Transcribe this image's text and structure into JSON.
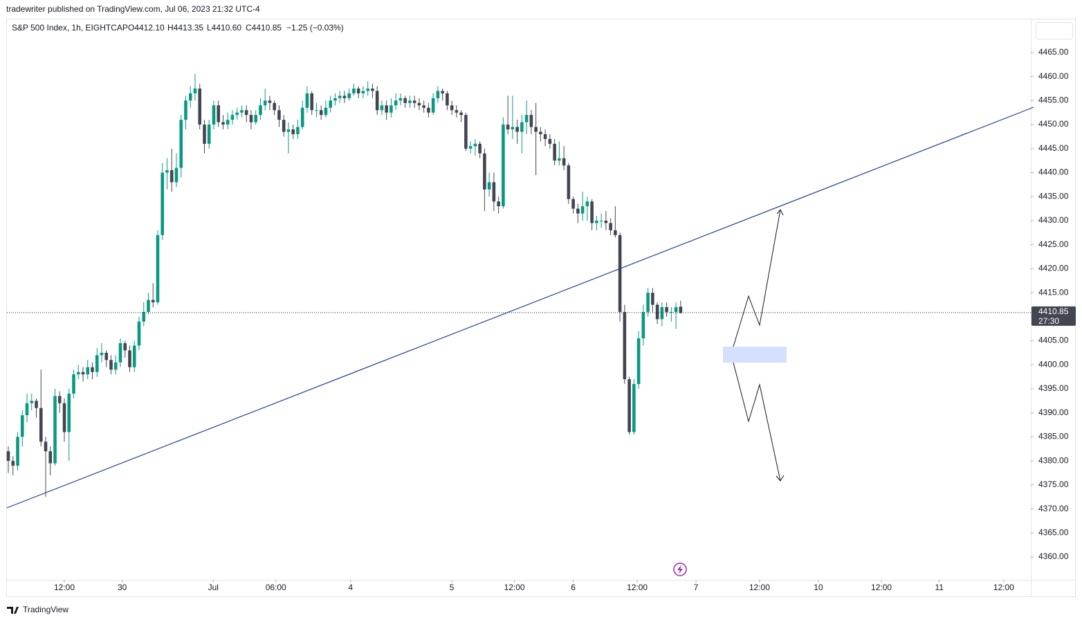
{
  "header": {
    "published": "tradewriter published on TradingView.com, Jul 06, 2023 21:32 UTC-4",
    "brand": "TradingView"
  },
  "chart_data": {
    "type": "candlestick",
    "legend": {
      "symbol": "S&P 500 Index, 1h, EIGHTCAP",
      "open": "O4412.10",
      "high": "H4413.35",
      "low": "L4410.60",
      "close": "C4410.85",
      "change": "−1.25 (−0.03%)"
    },
    "last_price_label": "4410.85",
    "countdown": "27:30",
    "up_color": "#089981",
    "down_color": "#434651",
    "open": [
      4382,
      4380,
      4379,
      4385,
      4389.5,
      4392,
      4392.5,
      4391,
      4384,
      4382,
      4379.5,
      4393.5,
      4392,
      4386,
      4394,
      4398,
      4398.5,
      4398,
      4399.5,
      4398.5,
      4402,
      4402.5,
      4401,
      4399,
      4400.5,
      4404.5,
      4403,
      4399.5,
      4404,
      4409,
      4411,
      4413.5,
      4413,
      4427,
      4440,
      4440.5,
      4438,
      4441,
      4451,
      4455,
      4456.5,
      4457.5,
      4450,
      4446,
      4450,
      4454,
      4450.5,
      4450,
      4451,
      4452,
      4452.5,
      4453,
      4452,
      4450.5,
      4452,
      4454,
      4455,
      4454.5,
      4453,
      4451,
      4448.5,
      4449,
      4448,
      4449.5,
      4453.5,
      4456.5,
      4453,
      4453,
      4452,
      4453.5,
      4455,
      4455.5,
      4456,
      4455.5,
      4456.5,
      4457.5,
      4456.5,
      4457,
      4457.5,
      4457,
      4453,
      4454,
      4452.5,
      4454,
      4455,
      4455.5,
      4454.5,
      4455,
      4454.5,
      4454,
      4453.5,
      4452.5,
      4455.5,
      4457,
      4456.5,
      4454,
      4453,
      4452.5,
      4452,
      4445,
      4445.5,
      4446,
      4444,
      4436.5,
      4438,
      4434,
      4433,
      4450,
      4449,
      4449.5,
      4448.5,
      4450.5,
      4452,
      4449.5,
      4448.5,
      4448,
      4447,
      4446,
      4442.5,
      4443,
      4441.5,
      4434.5,
      4432.5,
      4431.5,
      4433,
      4434,
      4429.5,
      4430,
      4430,
      4429.5,
      4428,
      4427,
      4411,
      4397,
      4386,
      4396,
      4405.5,
      4411,
      4415,
      4412.5,
      4409.5,
      4412,
      4411,
      4411,
      4412.1
    ],
    "high": [
      4383,
      4381,
      4386,
      4390.5,
      4394,
      4394,
      4393,
      4399,
      4385,
      4383,
      4395,
      4394.5,
      4393,
      4395,
      4399,
      4400,
      4399.5,
      4401,
      4400.5,
      4403.5,
      4404.5,
      4403,
      4402,
      4402,
      4405.5,
      4405,
      4404,
      4405,
      4410,
      4413,
      4415,
      4417,
      4428,
      4442,
      4443,
      4445,
      4444,
      4452,
      4456,
      4458,
      4460.5,
      4458.5,
      4451,
      4451,
      4455,
      4455,
      4452,
      4452.5,
      4453,
      4453.5,
      4454,
      4454,
      4453,
      4453,
      4455.5,
      4457.5,
      4456,
      4455,
      4454,
      4452,
      4450.5,
      4450,
      4451,
      4455,
      4458,
      4457,
      4454.5,
      4454,
      4455,
      4456,
      4456.5,
      4457,
      4457,
      4457.5,
      4458.5,
      4458,
      4458,
      4459,
      4458.5,
      4458,
      4455,
      4455,
      4455.5,
      4456.5,
      4456.5,
      4456,
      4456,
      4456,
      4455.5,
      4455,
      4454.5,
      4456.5,
      4458,
      4457.5,
      4457,
      4455,
      4454,
      4453,
      4452.5,
      4446.5,
      4447,
      4446.5,
      4445,
      4440,
      4440,
      4435,
      4451.5,
      4456,
      4456,
      4451,
      4452,
      4455,
      4453,
      4454.5,
      4449.5,
      4449,
      4448,
      4447,
      4446.5,
      4445.5,
      4442,
      4435,
      4433.5,
      4436,
      4435,
      4434.5,
      4431,
      4431.5,
      4432,
      4430.5,
      4433,
      4427.5,
      4412.5,
      4397.5,
      4397,
      4407,
      4412.5,
      4416,
      4416,
      4413,
      4413,
      4413,
      4412,
      4413,
      4413.35
    ],
    "low": [
      4377.5,
      4377,
      4378,
      4383,
      4388,
      4390.5,
      4389,
      4383,
      4372.5,
      4377,
      4379,
      4390,
      4384,
      4380,
      4393,
      4397,
      4396.5,
      4397,
      4397,
      4397.5,
      4400.5,
      4399.5,
      4398,
      4398,
      4399.5,
      4401.5,
      4398.5,
      4398.5,
      4403,
      4408,
      4410.5,
      4412,
      4412.5,
      4426,
      4436.5,
      4436,
      4437,
      4439,
      4449,
      4453.5,
      4455,
      4449,
      4444,
      4445,
      4449,
      4449.5,
      4449,
      4449,
      4450,
      4451,
      4451.5,
      4450.5,
      4449,
      4450,
      4451,
      4453,
      4453,
      4452,
      4449.5,
      4447.5,
      4444,
      4447,
      4447,
      4449,
      4452.5,
      4452,
      4451.5,
      4451,
      4451.5,
      4452.5,
      4454,
      4454.5,
      4454.5,
      4455,
      4456,
      4455.5,
      4455.5,
      4456,
      4455.5,
      4452,
      4452,
      4451,
      4451.5,
      4453,
      4454,
      4453.5,
      4453.5,
      4453.5,
      4453,
      4452.5,
      4451.5,
      4452,
      4454.5,
      4455,
      4453,
      4452,
      4451.5,
      4450.5,
      4444.5,
      4444,
      4443.5,
      4443,
      4432,
      4435,
      4432,
      4431.5,
      4432.5,
      4448,
      4447,
      4446,
      4444,
      4448,
      4448,
      4439.5,
      4446.5,
      4445.5,
      4445,
      4441.5,
      4441.5,
      4440.5,
      4433.5,
      4431.5,
      4429.5,
      4430,
      4430,
      4428,
      4428,
      4428.5,
      4428,
      4427,
      4426.5,
      4409,
      4396,
      4385.5,
      4385.5,
      4395,
      4404,
      4410,
      4411,
      4408.5,
      4408,
      4410,
      4409,
      4407.5,
      4410.6
    ],
    "close": [
      4380,
      4379,
      4385,
      4389.5,
      4392,
      4392.5,
      4391,
      4384,
      4382,
      4379.5,
      4393.5,
      4392,
      4386,
      4394,
      4398,
      4398.5,
      4398,
      4399.5,
      4398.5,
      4402,
      4402.5,
      4401,
      4399,
      4400.5,
      4404.5,
      4403,
      4399.5,
      4404,
      4409,
      4411,
      4413.5,
      4413,
      4427,
      4440,
      4440.5,
      4438,
      4441,
      4451,
      4455,
      4456.5,
      4457.5,
      4450,
      4446,
      4450,
      4454,
      4450.5,
      4450,
      4451,
      4452,
      4452.5,
      4453,
      4452,
      4450.5,
      4452,
      4454,
      4455,
      4454.5,
      4453,
      4451,
      4448.5,
      4449,
      4448,
      4449.5,
      4453.5,
      4456.5,
      4453,
      4453,
      4452,
      4453.5,
      4455,
      4455.5,
      4456,
      4455.5,
      4456.5,
      4457.5,
      4456.5,
      4457,
      4457.5,
      4457,
      4453,
      4454,
      4452.5,
      4454,
      4455,
      4455.5,
      4454.5,
      4455,
      4454.5,
      4454,
      4453.5,
      4452.5,
      4455.5,
      4457,
      4456.5,
      4454,
      4453,
      4452.5,
      4452,
      4445,
      4445.5,
      4446,
      4444,
      4436.5,
      4438,
      4434,
      4433,
      4450,
      4449,
      4449.5,
      4448.5,
      4450.5,
      4452,
      4449.5,
      4448.5,
      4448,
      4447,
      4446,
      4442.5,
      4443,
      4441.5,
      4434.5,
      4432.5,
      4431.5,
      4433,
      4434,
      4429.5,
      4430,
      4430,
      4429.5,
      4428,
      4427,
      4411,
      4397,
      4386,
      4396,
      4405.5,
      4411,
      4415,
      4412.5,
      4409.5,
      4412,
      4411,
      4411,
      4412,
      4410.85
    ],
    "xlim": [
      -0.3,
      219
    ],
    "xticks": [
      {
        "value": 12,
        "label": "12:00"
      },
      {
        "value": 24.4,
        "label": "30"
      },
      {
        "value": 43.9,
        "label": "Jul"
      },
      {
        "value": 57.3,
        "label": "06:00"
      },
      {
        "value": 73.3,
        "label": "4"
      },
      {
        "value": 95,
        "label": "5"
      },
      {
        "value": 108.4,
        "label": "12:00"
      },
      {
        "value": 121,
        "label": "6"
      },
      {
        "value": 134.7,
        "label": "12:00"
      },
      {
        "value": 147.3,
        "label": "7"
      },
      {
        "value": 160.9,
        "label": "12:00"
      },
      {
        "value": 173.5,
        "label": "10"
      },
      {
        "value": 187,
        "label": "12:00"
      },
      {
        "value": 199.4,
        "label": "11"
      },
      {
        "value": 213.2,
        "label": "12:00"
      }
    ],
    "ylim": [
      4355.25,
      4471.9
    ],
    "yticks": [
      {
        "value": 4360,
        "label": "4360.00"
      },
      {
        "value": 4365,
        "label": "4365.00"
      },
      {
        "value": 4370,
        "label": "4370.00"
      },
      {
        "value": 4375,
        "label": "4375.00"
      },
      {
        "value": 4380,
        "label": "4380.00"
      },
      {
        "value": 4385,
        "label": "4385.00"
      },
      {
        "value": 4390,
        "label": "4390.00"
      },
      {
        "value": 4395,
        "label": "4395.00"
      },
      {
        "value": 4400,
        "label": "4400.00"
      },
      {
        "value": 4405,
        "label": "4405.00"
      },
      {
        "value": 4410,
        "label": "4410.00"
      },
      {
        "value": 4415,
        "label": "4415.00"
      },
      {
        "value": 4420,
        "label": "4420.00"
      },
      {
        "value": 4425,
        "label": "4425.00"
      },
      {
        "value": 4430,
        "label": "4430.00"
      },
      {
        "value": 4435,
        "label": "4435.00"
      },
      {
        "value": 4440,
        "label": "4440.00"
      },
      {
        "value": 4445,
        "label": "4445.00"
      },
      {
        "value": 4450,
        "label": "4450.00"
      },
      {
        "value": 4455,
        "label": "4455.00"
      },
      {
        "value": 4460,
        "label": "4460.00"
      },
      {
        "value": 4465,
        "label": "4465.00"
      }
    ]
  }
}
